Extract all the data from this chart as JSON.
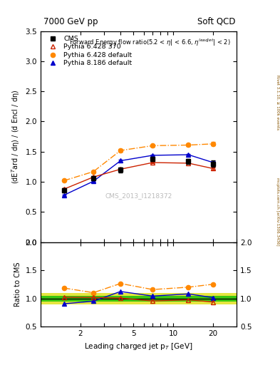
{
  "title_left": "7000 GeV pp",
  "title_right": "Soft QCD",
  "xlabel": "Leading charged jet p$_{T}$ [GeV]",
  "ylabel_main": "(dE$^{T}$ard / dη) / (d Encl / dη)",
  "ylabel_ratio": "Ratio to CMS",
  "right_label1": "Rivet 3.1.10, ≥ 100k events",
  "right_label2": "mcplots.cern.ch [arXiv:1306.3436]",
  "watermark": "CMS_2013_I1218372",
  "plot_title": "Forward Energy flow ratio(5.2 < η| < 6.6, η$^{leadjet}$| < 2)",
  "cms_x": [
    1.5,
    2.5,
    4.0,
    7.0,
    13.0,
    20.0
  ],
  "cms_y": [
    0.86,
    1.06,
    1.2,
    1.38,
    1.34,
    1.3
  ],
  "cms_yerr": [
    0.04,
    0.04,
    0.04,
    0.04,
    0.04,
    0.05
  ],
  "p6_370_x": [
    1.5,
    2.5,
    4.0,
    7.0,
    13.0,
    20.0
  ],
  "p6_370_y": [
    0.88,
    1.08,
    1.21,
    1.32,
    1.31,
    1.22
  ],
  "p6_370_yerr": [
    0.012,
    0.012,
    0.012,
    0.012,
    0.012,
    0.02
  ],
  "p6_def_x": [
    1.5,
    2.5,
    4.0,
    7.0,
    13.0,
    20.0
  ],
  "p6_def_y": [
    1.02,
    1.17,
    1.52,
    1.6,
    1.61,
    1.63
  ],
  "p6_def_yerr": [
    0.012,
    0.012,
    0.02,
    0.02,
    0.02,
    0.03
  ],
  "p8_def_x": [
    1.5,
    2.5,
    4.0,
    7.0,
    13.0,
    20.0
  ],
  "p8_def_y": [
    0.78,
    1.01,
    1.35,
    1.44,
    1.45,
    1.32
  ],
  "p8_def_yerr": [
    0.012,
    0.012,
    0.012,
    0.012,
    0.012,
    0.02
  ],
  "ratio_band_yellow": 0.1,
  "ratio_band_green": 0.05,
  "xlim": [
    1.0,
    30.0
  ],
  "ylim_main": [
    0.0,
    3.5
  ],
  "ylim_ratio": [
    0.5,
    2.0
  ],
  "cms_color": "black",
  "p6_370_color": "#cc2200",
  "p6_def_color": "#ff8800",
  "p8_def_color": "#0000cc",
  "yellow_color": "#dddd00",
  "green_color": "#00bb00"
}
